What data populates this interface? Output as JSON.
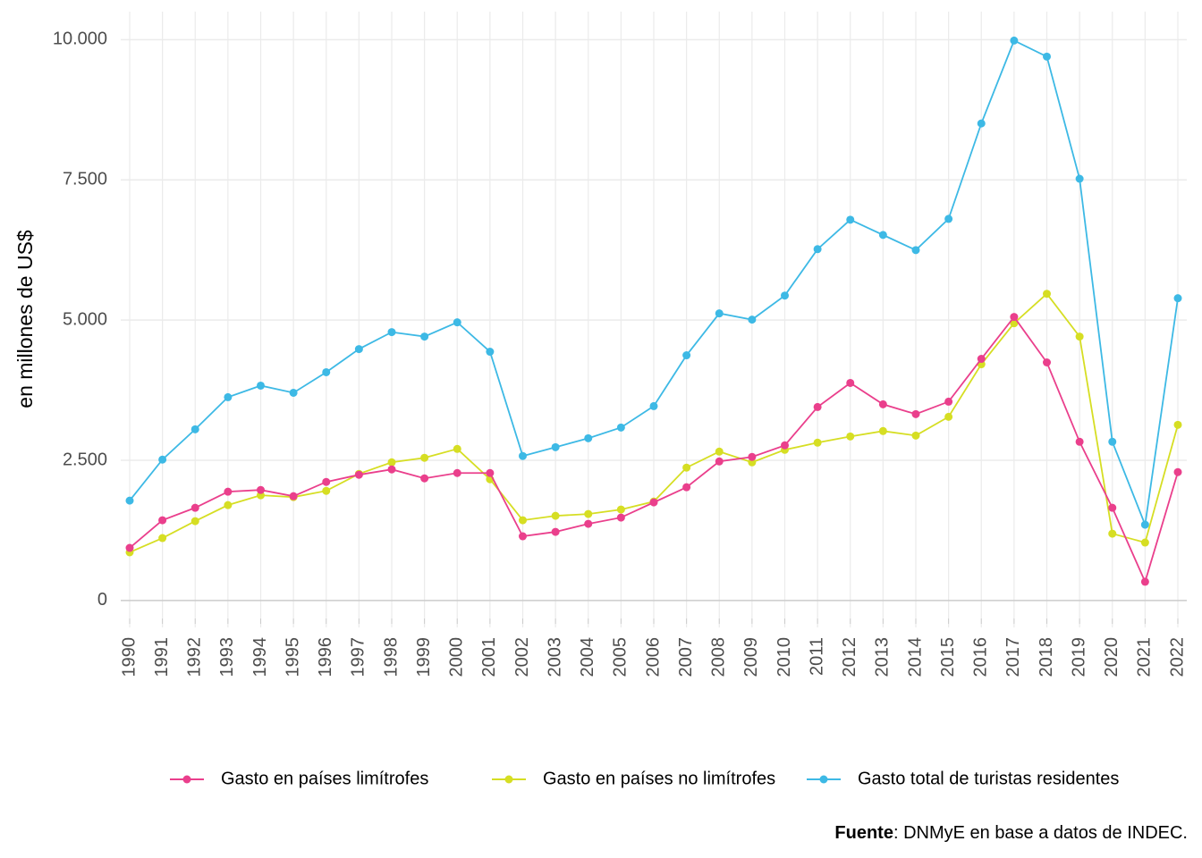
{
  "chart_data": {
    "type": "line",
    "y_label": "en millones de US$",
    "source": {
      "label": "Fuente",
      "text": ": DNMyE en base a datos de INDEC."
    },
    "categories": [
      "1990",
      "1991",
      "1992",
      "1993",
      "1994",
      "1995",
      "1996",
      "1997",
      "1998",
      "1999",
      "2000",
      "2001",
      "2002",
      "2003",
      "2004",
      "2005",
      "2006",
      "2007",
      "2008",
      "2009",
      "2010",
      "2011",
      "2012",
      "2013",
      "2014",
      "2015",
      "2016",
      "2017",
      "2018",
      "2019",
      "2020",
      "2021",
      "2022"
    ],
    "ylim": [
      -480,
      10500
    ],
    "yticks": [
      0,
      {
        "value": 2500,
        "label": "2.500"
      },
      {
        "value": 5000,
        "label": "5.000"
      },
      {
        "value": 7500,
        "label": "7.500"
      },
      {
        "value": 10000,
        "label": "10.000"
      }
    ],
    "grid": true,
    "legend": "bottom",
    "series": [
      {
        "name": "Gasto en países limítrofes",
        "color": "#ea3f8c",
        "values": [
          938,
          1431,
          1653,
          1940,
          1971,
          1860,
          2114,
          2242,
          2337,
          2178,
          2273,
          2273,
          1145,
          1224,
          1367,
          1479,
          1749,
          2019,
          2480,
          2560,
          2766,
          3450,
          3879,
          3498,
          3323,
          3545,
          4308,
          5056,
          4245,
          2830,
          1653,
          334,
          2289
        ]
      },
      {
        "name": "Gasto en países no limítrofes",
        "color": "#d6de23",
        "values": [
          859,
          1113,
          1415,
          1701,
          1876,
          1844,
          1955,
          2258,
          2464,
          2544,
          2703,
          2162,
          1431,
          1510,
          1542,
          1622,
          1765,
          2369,
          2655,
          2464,
          2687,
          2814,
          2925,
          3021,
          2941,
          3275,
          4213,
          4944,
          5469,
          4706,
          1192,
          1033,
          3132
        ]
      },
      {
        "name": "Gasto total de turistas residentes",
        "color": "#3db9e5",
        "values": [
          1781,
          2512,
          3052,
          3625,
          3831,
          3704,
          4070,
          4483,
          4785,
          4706,
          4960,
          4436,
          2576,
          2734,
          2893,
          3084,
          3466,
          4372,
          5119,
          5008,
          5437,
          6264,
          6789,
          6518,
          6248,
          6804,
          8506,
          9984,
          9698,
          7520,
          2830,
          1351,
          5390
        ]
      }
    ]
  }
}
